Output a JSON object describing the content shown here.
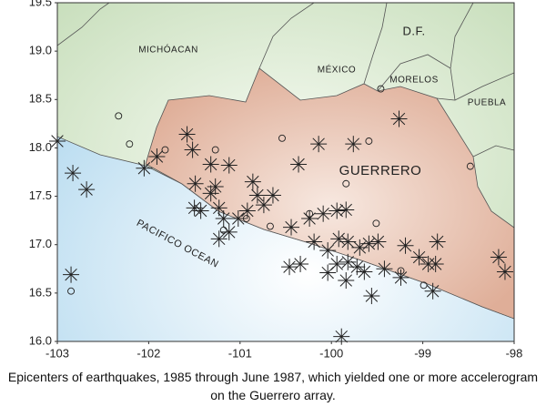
{
  "chart_data": {
    "type": "scatter",
    "caption": "Epicenters of earthquakes, 1985 through June 1987, which yielded one or more accelerogram on the Guerrero array.",
    "annotations": [
      "MICHÓACAN",
      "MÉXICO",
      "D.F.",
      "MORELOS",
      "PUEBLA",
      "GUERRERO",
      "PACIFICO OCEAN"
    ],
    "xlim": [
      -103,
      -98
    ],
    "ylim": [
      16,
      19.5
    ],
    "xticks": [
      -103,
      -102,
      -101,
      -100,
      -99,
      -98
    ],
    "yticks": [
      {
        "value": 16,
        "label": "16.0"
      },
      16.5,
      {
        "value": 17,
        "label": "17.0"
      },
      17.5,
      {
        "value": 18,
        "label": "18.0"
      },
      18.5,
      {
        "value": 19,
        "label": "19.0"
      },
      19.5
    ],
    "grid": false,
    "series": [
      {
        "marker": "asterisk",
        "color": "#222222",
        "x": [
          -103.0,
          -102.83,
          -102.68,
          -102.85,
          -102.05,
          -101.91,
          -101.58,
          -101.52,
          -101.32,
          -101.12,
          -101.49,
          -101.32,
          -101.27,
          -101.5,
          -101.43,
          -101.23,
          -101.18,
          -101.23,
          -101.12,
          -101.02,
          -100.92,
          -100.86,
          -100.81,
          -100.74,
          -100.64,
          -100.44,
          -100.36,
          -100.14,
          -99.76,
          -99.26,
          -100.46,
          -100.24,
          -100.09,
          -99.94,
          -99.84,
          -100.19,
          -100.04,
          -99.92,
          -99.82,
          -99.69,
          -99.59,
          -99.49,
          -99.82,
          -99.72,
          -99.64,
          -99.84,
          -99.56,
          -99.42,
          -99.24,
          -99.19,
          -99.04,
          -98.94,
          -98.84,
          -98.86,
          -98.89,
          -98.17,
          -98.1,
          -99.89,
          -100.34,
          -100.04,
          -99.94
        ],
        "y": [
          18.07,
          17.74,
          17.57,
          16.69,
          17.79,
          17.91,
          18.14,
          17.98,
          17.83,
          17.82,
          17.63,
          17.53,
          17.6,
          17.38,
          17.35,
          17.38,
          17.27,
          17.06,
          17.13,
          17.27,
          17.35,
          17.65,
          17.51,
          17.41,
          17.51,
          17.18,
          17.83,
          18.04,
          18.04,
          18.3,
          16.77,
          17.27,
          17.32,
          17.35,
          17.36,
          17.03,
          16.94,
          17.06,
          17.03,
          16.97,
          17.01,
          17.03,
          16.82,
          16.77,
          16.72,
          16.63,
          16.47,
          16.75,
          16.66,
          16.99,
          16.87,
          16.8,
          17.03,
          16.8,
          16.52,
          16.87,
          16.72,
          16.05,
          16.8,
          16.71,
          16.8
        ]
      },
      {
        "marker": "circle",
        "color": "#222222",
        "x": [
          -102.33,
          -102.21,
          -102.85,
          -101.82,
          -101.27,
          -100.54,
          -99.46,
          -99.59,
          -99.84,
          -99.51,
          -98.48,
          -100.67,
          -100.24,
          -99.24,
          -98.99,
          -101.18,
          -100.93
        ],
        "y": [
          18.33,
          18.04,
          16.52,
          17.98,
          17.98,
          18.1,
          18.61,
          18.07,
          17.63,
          17.22,
          17.81,
          17.19,
          17.32,
          16.73,
          16.58,
          17.15,
          17.27
        ]
      }
    ]
  }
}
